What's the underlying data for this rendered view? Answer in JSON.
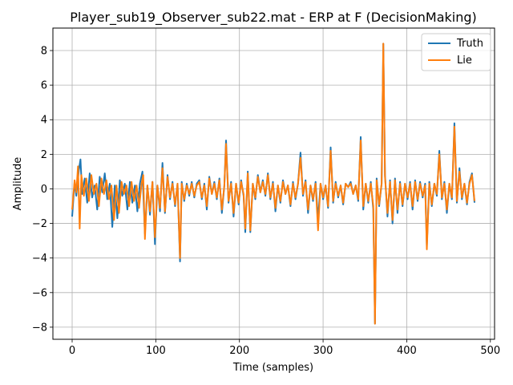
{
  "chart_data": {
    "type": "line",
    "title": "Player_sub19_Observer_sub22.mat - ERP at F (DecisionMaking)",
    "xlabel": "Time (samples)",
    "ylabel": "Amplitude",
    "xlim": [
      -23,
      505
    ],
    "ylim": [
      -8.7,
      9.3
    ],
    "xticks": [
      0,
      100,
      200,
      300,
      400,
      500
    ],
    "yticks": [
      -8,
      -6,
      -4,
      -2,
      0,
      2,
      4,
      6,
      8
    ],
    "grid": true,
    "legend": "top-right",
    "series": [
      {
        "name": "Truth",
        "color": "#1f77b4",
        "points": [
          [
            0,
            -1.6
          ],
          [
            3,
            0.4
          ],
          [
            5,
            -0.4
          ],
          [
            8,
            1.1
          ],
          [
            10,
            1.7
          ],
          [
            12,
            -0.3
          ],
          [
            15,
            0.6
          ],
          [
            18,
            -0.8
          ],
          [
            21,
            0.9
          ],
          [
            24,
            -0.5
          ],
          [
            27,
            0.2
          ],
          [
            30,
            -1.2
          ],
          [
            33,
            0.7
          ],
          [
            36,
            -0.2
          ],
          [
            39,
            0.9
          ],
          [
            42,
            -0.6
          ],
          [
            45,
            0.3
          ],
          [
            48,
            -2.2
          ],
          [
            51,
            0.2
          ],
          [
            54,
            -1.7
          ],
          [
            57,
            0.5
          ],
          [
            60,
            -0.4
          ],
          [
            63,
            0.3
          ],
          [
            66,
            -1.2
          ],
          [
            69,
            0.4
          ],
          [
            72,
            -0.8
          ],
          [
            75,
            0.2
          ],
          [
            78,
            -1.3
          ],
          [
            81,
            0.3
          ],
          [
            84,
            1.0
          ],
          [
            87,
            -2.6
          ],
          [
            90,
            0.2
          ],
          [
            93,
            -1.5
          ],
          [
            96,
            0.4
          ],
          [
            99,
            -3.2
          ],
          [
            102,
            0.2
          ],
          [
            105,
            -1.3
          ],
          [
            108,
            1.5
          ],
          [
            111,
            -1.4
          ],
          [
            114,
            0.8
          ],
          [
            117,
            -0.6
          ],
          [
            120,
            0.4
          ],
          [
            123,
            -1.0
          ],
          [
            126,
            0.3
          ],
          [
            129,
            -4.2
          ],
          [
            131,
            0.4
          ],
          [
            134,
            -0.7
          ],
          [
            137,
            0.3
          ],
          [
            140,
            -0.4
          ],
          [
            143,
            0.4
          ],
          [
            146,
            -0.5
          ],
          [
            149,
            0.3
          ],
          [
            152,
            0.5
          ],
          [
            155,
            -0.6
          ],
          [
            158,
            0.3
          ],
          [
            161,
            -1.2
          ],
          [
            164,
            0.7
          ],
          [
            167,
            -0.3
          ],
          [
            170,
            0.4
          ],
          [
            173,
            -0.6
          ],
          [
            176,
            0.6
          ],
          [
            179,
            -1.4
          ],
          [
            182,
            0.2
          ],
          [
            184,
            2.8
          ],
          [
            187,
            -0.8
          ],
          [
            190,
            0.4
          ],
          [
            193,
            -1.6
          ],
          [
            196,
            0.3
          ],
          [
            199,
            -0.9
          ],
          [
            202,
            0.5
          ],
          [
            205,
            -0.4
          ],
          [
            207,
            -2.5
          ],
          [
            210,
            1.0
          ],
          [
            213,
            -2.5
          ],
          [
            216,
            0.3
          ],
          [
            219,
            -0.6
          ],
          [
            222,
            0.8
          ],
          [
            225,
            -0.2
          ],
          [
            228,
            0.5
          ],
          [
            231,
            -0.4
          ],
          [
            234,
            0.9
          ],
          [
            237,
            -0.6
          ],
          [
            240,
            0.4
          ],
          [
            243,
            -1.3
          ],
          [
            246,
            0.2
          ],
          [
            249,
            -0.8
          ],
          [
            252,
            0.5
          ],
          [
            255,
            -0.3
          ],
          [
            258,
            0.2
          ],
          [
            261,
            -1.0
          ],
          [
            264,
            0.4
          ],
          [
            267,
            -0.6
          ],
          [
            270,
            0.3
          ],
          [
            273,
            2.1
          ],
          [
            276,
            -0.4
          ],
          [
            279,
            0.5
          ],
          [
            282,
            -1.4
          ],
          [
            285,
            0.2
          ],
          [
            288,
            -0.7
          ],
          [
            291,
            0.4
          ],
          [
            294,
            -1.8
          ],
          [
            297,
            0.3
          ],
          [
            300,
            -0.6
          ],
          [
            303,
            0.2
          ],
          [
            306,
            -1.1
          ],
          [
            309,
            2.4
          ],
          [
            312,
            -0.8
          ],
          [
            315,
            0.4
          ],
          [
            318,
            -0.5
          ],
          [
            321,
            0.2
          ],
          [
            324,
            -0.9
          ],
          [
            327,
            0.3
          ],
          [
            330,
            0.1
          ],
          [
            333,
            0.4
          ],
          [
            336,
            -0.3
          ],
          [
            339,
            0.2
          ],
          [
            342,
            -0.7
          ],
          [
            345,
            3.0
          ],
          [
            348,
            -1.2
          ],
          [
            351,
            0.3
          ],
          [
            354,
            -0.8
          ],
          [
            357,
            0.4
          ],
          [
            360,
            -1.2
          ],
          [
            362,
            -7.8
          ],
          [
            364,
            0.6
          ],
          [
            367,
            -1.0
          ],
          [
            370,
            0.3
          ],
          [
            372,
            8.4
          ],
          [
            374,
            0.8
          ],
          [
            377,
            -1.6
          ],
          [
            380,
            0.5
          ],
          [
            383,
            -2.0
          ],
          [
            386,
            0.6
          ],
          [
            389,
            -1.4
          ],
          [
            392,
            0.4
          ],
          [
            395,
            -1.0
          ],
          [
            398,
            0.3
          ],
          [
            401,
            -0.6
          ],
          [
            404,
            0.4
          ],
          [
            407,
            -1.2
          ],
          [
            410,
            0.5
          ],
          [
            413,
            -0.7
          ],
          [
            416,
            0.4
          ],
          [
            419,
            -0.5
          ],
          [
            422,
            0.3
          ],
          [
            424,
            -3.3
          ],
          [
            427,
            0.4
          ],
          [
            430,
            -1.0
          ],
          [
            433,
            0.3
          ],
          [
            436,
            -0.4
          ],
          [
            439,
            2.2
          ],
          [
            442,
            -0.6
          ],
          [
            445,
            0.4
          ],
          [
            448,
            -1.4
          ],
          [
            451,
            0.3
          ],
          [
            454,
            -0.6
          ],
          [
            457,
            3.8
          ],
          [
            460,
            -0.8
          ],
          [
            463,
            1.2
          ],
          [
            466,
            -0.6
          ],
          [
            469,
            0.3
          ],
          [
            472,
            -0.9
          ],
          [
            475,
            0.4
          ],
          [
            478,
            0.9
          ],
          [
            481,
            -0.8
          ]
        ]
      },
      {
        "name": "Lie",
        "color": "#ff7f0e",
        "points": [
          [
            0,
            -1.2
          ],
          [
            3,
            0.5
          ],
          [
            5,
            -0.2
          ],
          [
            7,
            1.3
          ],
          [
            9,
            -2.3
          ],
          [
            11,
            0.8
          ],
          [
            14,
            -0.4
          ],
          [
            17,
            0.6
          ],
          [
            20,
            -0.7
          ],
          [
            23,
            0.8
          ],
          [
            26,
            -0.3
          ],
          [
            29,
            0.3
          ],
          [
            32,
            -1.0
          ],
          [
            35,
            0.6
          ],
          [
            38,
            -0.3
          ],
          [
            41,
            0.5
          ],
          [
            44,
            -0.6
          ],
          [
            47,
            0.2
          ],
          [
            50,
            -1.8
          ],
          [
            53,
            0.2
          ],
          [
            56,
            -1.4
          ],
          [
            59,
            0.4
          ],
          [
            62,
            -0.3
          ],
          [
            65,
            0.2
          ],
          [
            68,
            -1.0
          ],
          [
            71,
            0.4
          ],
          [
            74,
            -0.7
          ],
          [
            77,
            0.2
          ],
          [
            80,
            -1.1
          ],
          [
            83,
            0.3
          ],
          [
            85,
            0.8
          ],
          [
            87,
            -2.9
          ],
          [
            90,
            0.2
          ],
          [
            93,
            -1.3
          ],
          [
            96,
            0.4
          ],
          [
            99,
            -2.8
          ],
          [
            102,
            0.2
          ],
          [
            105,
            -1.1
          ],
          [
            108,
            1.2
          ],
          [
            111,
            -1.3
          ],
          [
            114,
            0.7
          ],
          [
            117,
            -0.5
          ],
          [
            120,
            0.3
          ],
          [
            123,
            -0.9
          ],
          [
            126,
            0.3
          ],
          [
            129,
            -4.0
          ],
          [
            131,
            0.3
          ],
          [
            134,
            -0.6
          ],
          [
            137,
            0.2
          ],
          [
            140,
            -0.3
          ],
          [
            143,
            0.3
          ],
          [
            146,
            -0.4
          ],
          [
            149,
            0.2
          ],
          [
            152,
            0.4
          ],
          [
            155,
            -0.5
          ],
          [
            158,
            0.2
          ],
          [
            161,
            -1.0
          ],
          [
            164,
            0.6
          ],
          [
            167,
            -0.3
          ],
          [
            170,
            0.3
          ],
          [
            173,
            -0.5
          ],
          [
            176,
            0.5
          ],
          [
            179,
            -1.2
          ],
          [
            182,
            0.2
          ],
          [
            184,
            2.6
          ],
          [
            187,
            -0.7
          ],
          [
            190,
            0.3
          ],
          [
            193,
            -1.4
          ],
          [
            196,
            0.3
          ],
          [
            199,
            -0.8
          ],
          [
            202,
            0.4
          ],
          [
            205,
            -0.3
          ],
          [
            207,
            -2.3
          ],
          [
            210,
            0.9
          ],
          [
            213,
            -2.4
          ],
          [
            216,
            0.3
          ],
          [
            219,
            -0.5
          ],
          [
            222,
            0.7
          ],
          [
            225,
            -0.2
          ],
          [
            228,
            0.4
          ],
          [
            231,
            -0.3
          ],
          [
            234,
            0.8
          ],
          [
            237,
            -0.5
          ],
          [
            240,
            0.3
          ],
          [
            243,
            -1.1
          ],
          [
            246,
            0.2
          ],
          [
            249,
            -0.7
          ],
          [
            252,
            0.4
          ],
          [
            255,
            -0.3
          ],
          [
            258,
            0.2
          ],
          [
            261,
            -0.9
          ],
          [
            264,
            0.3
          ],
          [
            267,
            -0.5
          ],
          [
            270,
            0.3
          ],
          [
            273,
            1.8
          ],
          [
            276,
            -0.3
          ],
          [
            279,
            0.4
          ],
          [
            282,
            -1.2
          ],
          [
            285,
            0.2
          ],
          [
            288,
            -0.6
          ],
          [
            291,
            0.3
          ],
          [
            294,
            -2.4
          ],
          [
            297,
            0.3
          ],
          [
            300,
            -0.5
          ],
          [
            303,
            0.2
          ],
          [
            306,
            -1.0
          ],
          [
            309,
            2.2
          ],
          [
            312,
            -0.7
          ],
          [
            315,
            0.3
          ],
          [
            318,
            -0.4
          ],
          [
            321,
            0.2
          ],
          [
            324,
            -0.8
          ],
          [
            327,
            0.3
          ],
          [
            330,
            0.1
          ],
          [
            333,
            0.3
          ],
          [
            336,
            -0.3
          ],
          [
            339,
            0.2
          ],
          [
            342,
            -0.6
          ],
          [
            345,
            2.8
          ],
          [
            348,
            -1.0
          ],
          [
            351,
            0.3
          ],
          [
            354,
            -0.7
          ],
          [
            357,
            0.3
          ],
          [
            360,
            -1.0
          ],
          [
            362,
            -7.8
          ],
          [
            364,
            0.5
          ],
          [
            367,
            -0.9
          ],
          [
            370,
            0.3
          ],
          [
            372,
            8.4
          ],
          [
            374,
            0.7
          ],
          [
            377,
            -1.4
          ],
          [
            380,
            0.4
          ],
          [
            383,
            -1.8
          ],
          [
            386,
            0.5
          ],
          [
            389,
            -1.2
          ],
          [
            392,
            0.3
          ],
          [
            395,
            -0.9
          ],
          [
            398,
            0.3
          ],
          [
            401,
            -0.5
          ],
          [
            404,
            0.3
          ],
          [
            407,
            -1.0
          ],
          [
            410,
            0.4
          ],
          [
            413,
            -0.6
          ],
          [
            416,
            0.3
          ],
          [
            419,
            -0.4
          ],
          [
            422,
            0.2
          ],
          [
            424,
            -3.5
          ],
          [
            427,
            0.3
          ],
          [
            430,
            -0.9
          ],
          [
            433,
            0.3
          ],
          [
            436,
            -0.3
          ],
          [
            439,
            2.0
          ],
          [
            442,
            -0.5
          ],
          [
            445,
            0.3
          ],
          [
            448,
            -1.2
          ],
          [
            451,
            0.3
          ],
          [
            454,
            -0.5
          ],
          [
            457,
            3.6
          ],
          [
            460,
            -0.7
          ],
          [
            463,
            1.0
          ],
          [
            466,
            -0.5
          ],
          [
            469,
            0.3
          ],
          [
            472,
            -0.8
          ],
          [
            475,
            0.3
          ],
          [
            478,
            0.8
          ],
          [
            481,
            -0.7
          ]
        ]
      }
    ]
  }
}
